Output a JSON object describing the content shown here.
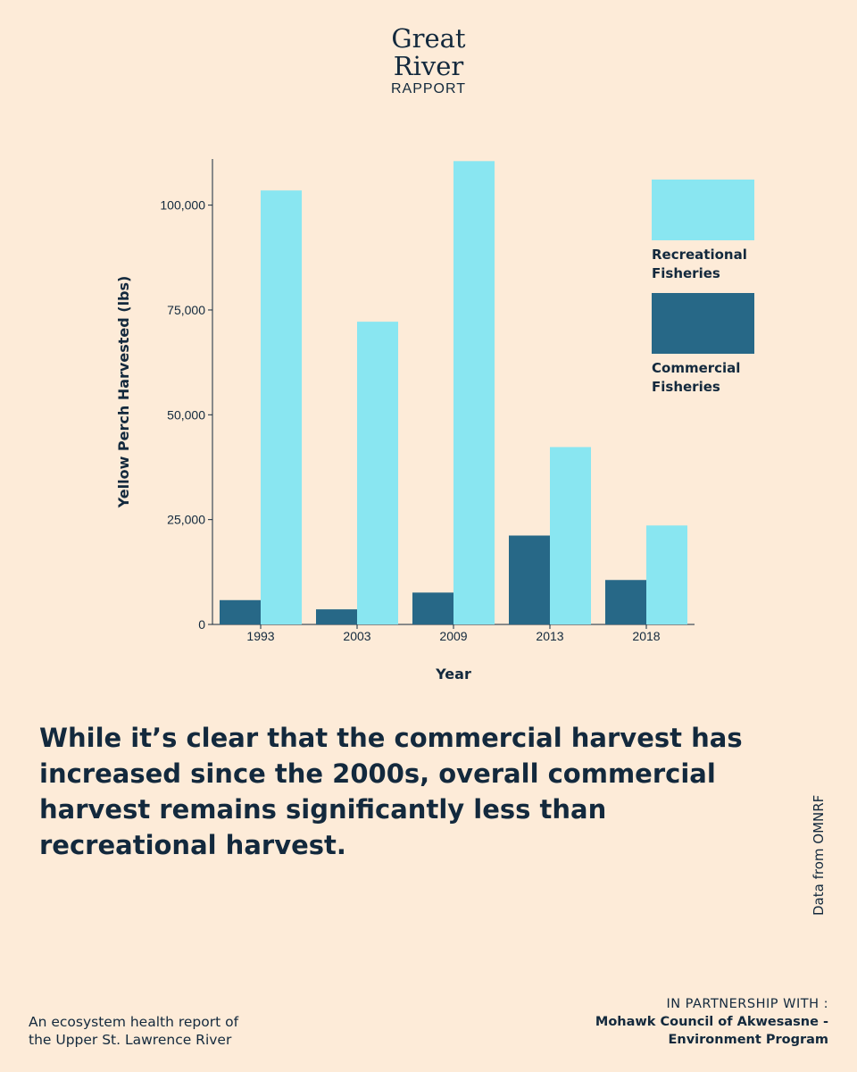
{
  "brand": {
    "line1": "Great",
    "line2": "River",
    "line3": "RAPPORT"
  },
  "chart_data": {
    "type": "bar",
    "categories": [
      "1993",
      "2003",
      "2009",
      "2013",
      "2018"
    ],
    "series": [
      {
        "name": "Commercial Fisheries",
        "values": [
          5800,
          3600,
          7600,
          21200,
          10600
        ],
        "color": "#276887"
      },
      {
        "name": "Recreational Fisheries",
        "values": [
          103500,
          72200,
          110500,
          42300,
          23600
        ],
        "color": "#89e6f1"
      }
    ],
    "title": "",
    "xlabel": "Year",
    "ylabel": "Yellow Perch Harvested (lbs)",
    "yticks": [
      0,
      25000,
      50000,
      75000,
      100000
    ],
    "ytick_labels": [
      "0",
      "25,000",
      "50,000",
      "75,000",
      "100,000"
    ],
    "ylim": [
      0,
      111000
    ],
    "grid": false,
    "legend_position": "top-right",
    "legend": [
      {
        "lines": [
          "Recreational",
          "Fisheries"
        ],
        "color": "#89e6f1"
      },
      {
        "lines": [
          "Commercial",
          "Fisheries"
        ],
        "color": "#276887"
      }
    ]
  },
  "caption": "While it’s clear that the commercial harvest has increased since the 2000s, overall commercial harvest remains significantly less than recreational harvest.",
  "source": "Data from OMNRF",
  "footer": {
    "left_line1": "An ecosystem health report of",
    "left_line2": "the Upper St. Lawrence River",
    "partner_label": "IN PARTNERSHIP WITH :",
    "partner_line1": "Mohawk Council of Akwesasne -",
    "partner_line2": "Environment Program"
  }
}
